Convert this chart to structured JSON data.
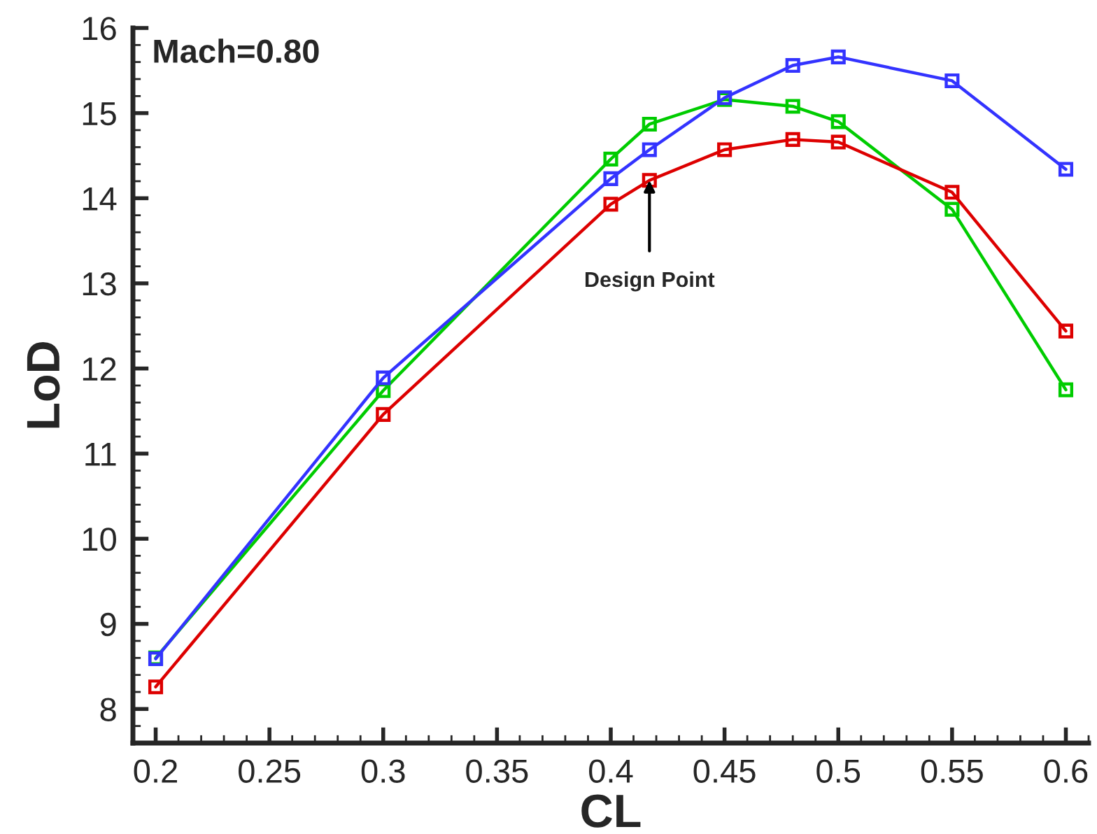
{
  "chart_data": {
    "type": "line",
    "xlabel": "CL",
    "ylabel": "LoD",
    "x": [
      0.2,
      0.3,
      0.4,
      0.417,
      0.45,
      0.48,
      0.5,
      0.55,
      0.6
    ],
    "series": [
      {
        "color": "#00cc00",
        "values": [
          8.6,
          11.74,
          14.46,
          14.87,
          15.16,
          15.08,
          14.9,
          13.87,
          11.75
        ]
      },
      {
        "color": "#dd0000",
        "values": [
          8.26,
          11.46,
          13.93,
          14.21,
          14.57,
          14.69,
          14.66,
          14.07,
          12.44
        ]
      },
      {
        "color": "#3333ff",
        "values": [
          8.59,
          11.89,
          14.23,
          14.57,
          15.18,
          15.56,
          15.66,
          15.38,
          14.34
        ]
      }
    ],
    "annotations": [
      "Mach=0.80",
      {
        "text": "Design Point",
        "x": 0.417,
        "y": 14.21
      }
    ],
    "xlim": [
      0.19,
      0.61
    ],
    "ylim": [
      7.6,
      16
    ],
    "xticks": [
      0.2,
      0.25,
      0.3,
      0.35,
      0.4,
      0.45,
      0.5,
      0.55,
      0.6
    ],
    "yticks": [
      8,
      9,
      10,
      11,
      12,
      13,
      14,
      15,
      16
    ],
    "marker": "square",
    "line_style": "solid",
    "grid": false,
    "legend": false
  }
}
